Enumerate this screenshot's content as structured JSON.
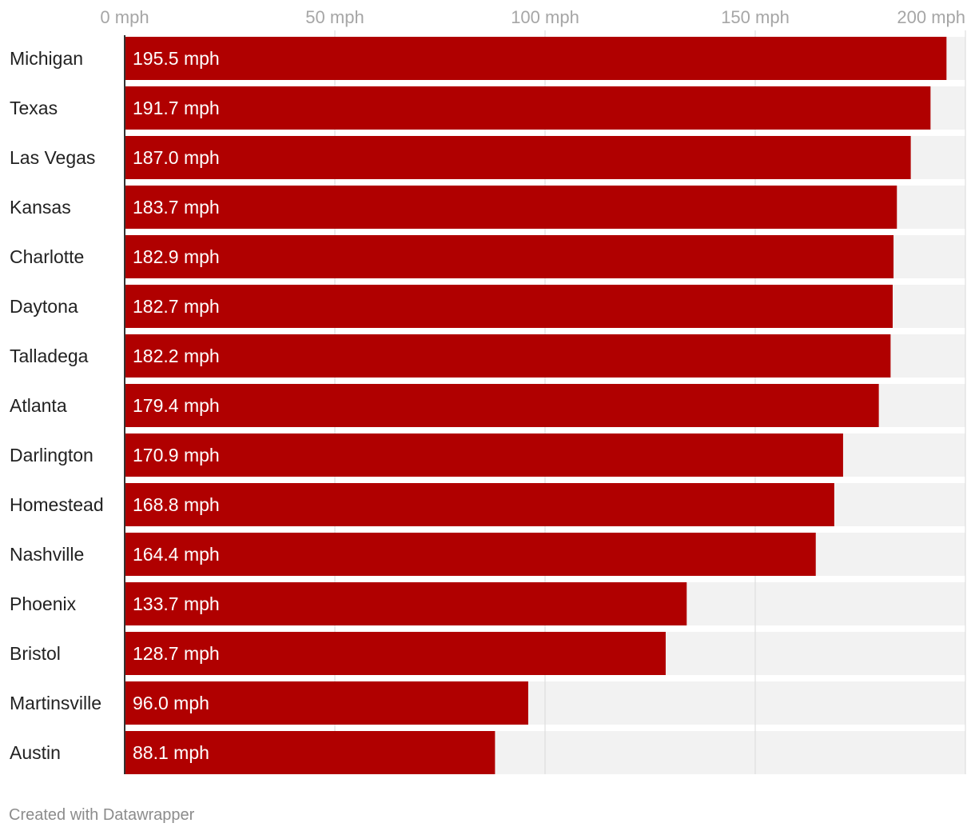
{
  "chart_data": {
    "type": "bar",
    "orientation": "horizontal",
    "categories": [
      "Michigan",
      "Texas",
      "Las Vegas",
      "Kansas",
      "Charlotte",
      "Daytona",
      "Talladega",
      "Atlanta",
      "Darlington",
      "Homestead",
      "Nashville",
      "Phoenix",
      "Bristol",
      "Martinsville",
      "Austin"
    ],
    "values": [
      195.5,
      191.7,
      187.0,
      183.7,
      182.9,
      182.7,
      182.2,
      179.4,
      170.9,
      168.8,
      164.4,
      133.7,
      128.7,
      96.0,
      88.1
    ],
    "value_labels": [
      "195.5 mph",
      "191.7 mph",
      "187.0 mph",
      "183.7 mph",
      "182.9 mph",
      "182.7 mph",
      "182.2 mph",
      "179.4 mph",
      "170.9 mph",
      "168.8 mph",
      "164.4 mph",
      "133.7 mph",
      "128.7 mph",
      "96.0 mph",
      "88.1 mph"
    ],
    "xlim": [
      0,
      200
    ],
    "x_ticks": [
      0,
      50,
      100,
      150,
      200
    ],
    "x_tick_labels": [
      "0 mph",
      "50 mph",
      "100 mph",
      "150 mph",
      "200 mph"
    ],
    "axis_position": "top",
    "grid": true,
    "title": "",
    "xlabel": "",
    "ylabel": ""
  },
  "colors": {
    "bar": "#b00000",
    "track": "#f2f2f2",
    "grid": "#d9d9d9",
    "baseline": "#333333"
  },
  "footer": {
    "credit": "Created with Datawrapper"
  }
}
